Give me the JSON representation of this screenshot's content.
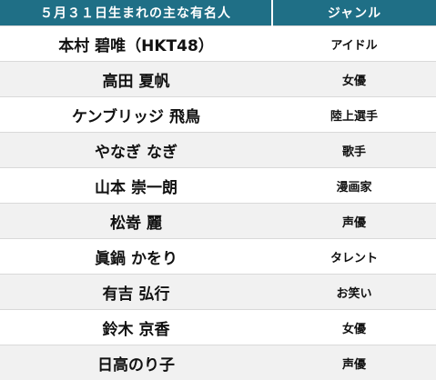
{
  "header": {
    "name_col": "５月３１日生まれの主な有名人",
    "genre_col": "ジャンル"
  },
  "rows": [
    {
      "name": "本村 碧唯（HKT48）",
      "genre": "アイドル"
    },
    {
      "name": "高田 夏帆",
      "genre": "女優"
    },
    {
      "name": "ケンブリッジ 飛鳥",
      "genre": "陸上選手"
    },
    {
      "name": "やなぎ なぎ",
      "genre": "歌手"
    },
    {
      "name": "山本 崇一朗",
      "genre": "漫画家"
    },
    {
      "name": "松嵜 麗",
      "genre": "声優"
    },
    {
      "name": "眞鍋 かをり",
      "genre": "タレント"
    },
    {
      "name": "有吉 弘行",
      "genre": "お笑い"
    },
    {
      "name": "鈴木 京香",
      "genre": "女優"
    },
    {
      "name": "日高のり子",
      "genre": "声優"
    }
  ]
}
